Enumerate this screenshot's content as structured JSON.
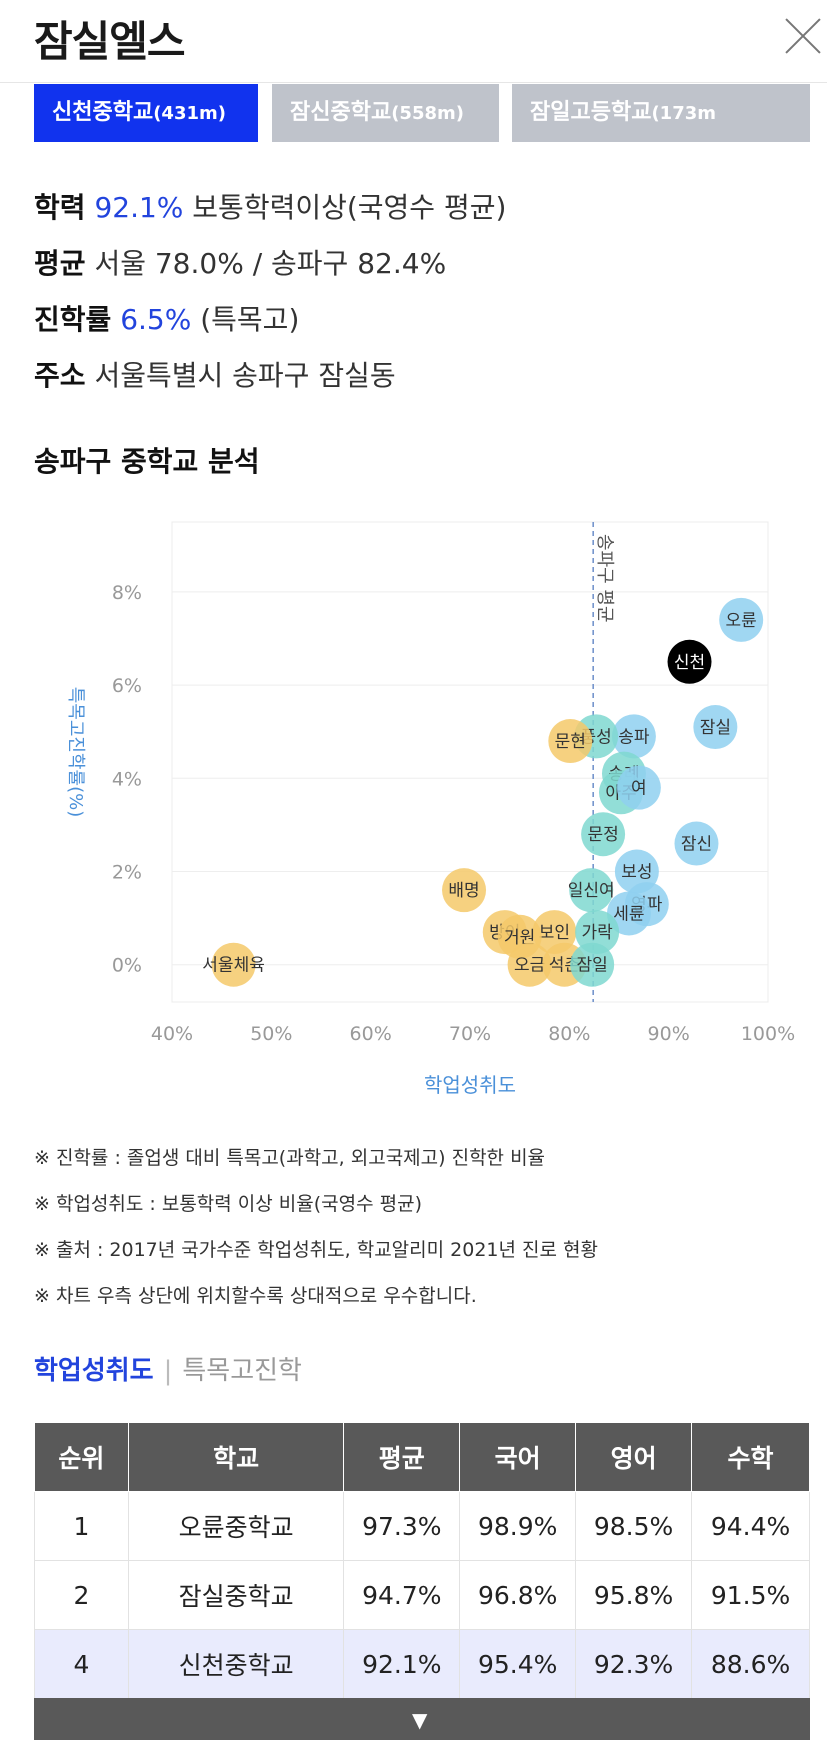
{
  "header": {
    "title": "잠실엘스"
  },
  "tabs": [
    {
      "label": "신천중학교",
      "distance": "(431m)",
      "active": true
    },
    {
      "label": "잠신중학교",
      "distance": "(558m)",
      "active": false
    },
    {
      "label": "잠일고등학교",
      "distance": "(173m",
      "active": false
    }
  ],
  "info": {
    "academic_label": "학력",
    "academic_value": "92.1%",
    "academic_desc": "보통학력이상(국영수 평균)",
    "avg_label": "평균",
    "avg_value": "서울 78.0% / 송파구 82.4%",
    "rate_label": "진학률",
    "rate_value": "6.5%",
    "rate_desc": "(특목고)",
    "addr_label": "주소",
    "addr_value": "서울특별시 송파구 잠실동"
  },
  "section_title": "송파구 중학교 분석",
  "chart_data": {
    "type": "scatter",
    "xlabel": "학업성취도",
    "ylabel": "특목고진학률(%)",
    "xlim": [
      40,
      100
    ],
    "ylim": [
      -0.8,
      9.5
    ],
    "xticks": [
      "40%",
      "50%",
      "60%",
      "70%",
      "80%",
      "90%",
      "100%"
    ],
    "xtick_values": [
      40,
      50,
      60,
      70,
      80,
      90,
      100
    ],
    "yticks": [
      "0%",
      "2%",
      "4%",
      "6%",
      "8%"
    ],
    "ytick_values": [
      0,
      2,
      4,
      6,
      8
    ],
    "reference_line": {
      "x": 82.4,
      "label": "송파구 평균"
    },
    "colors": {
      "above": "#8fd0f0",
      "mid": "#7fd8d0",
      "below": "#f5c96a",
      "selected": "#000000"
    },
    "points": [
      {
        "label": "오륜",
        "x": 97.3,
        "y": 7.4,
        "group": "above"
      },
      {
        "label": "신천",
        "x": 92.1,
        "y": 6.5,
        "group": "selected"
      },
      {
        "label": "잠실",
        "x": 94.7,
        "y": 5.1,
        "group": "above"
      },
      {
        "label": "송파",
        "x": 86.5,
        "y": 4.9,
        "group": "above"
      },
      {
        "label": "풍성",
        "x": 82.7,
        "y": 4.9,
        "group": "mid"
      },
      {
        "label": "문현",
        "x": 80.1,
        "y": 4.8,
        "group": "below"
      },
      {
        "label": "송례",
        "x": 85.5,
        "y": 4.1,
        "group": "mid"
      },
      {
        "label": "아주",
        "x": 85.2,
        "y": 3.7,
        "group": "mid"
      },
      {
        "label": "여",
        "x": 87.0,
        "y": 3.8,
        "group": "above"
      },
      {
        "label": "문정",
        "x": 83.4,
        "y": 2.8,
        "group": "mid"
      },
      {
        "label": "잠신",
        "x": 92.8,
        "y": 2.6,
        "group": "above"
      },
      {
        "label": "보성",
        "x": 86.8,
        "y": 2.0,
        "group": "above"
      },
      {
        "label": "배명",
        "x": 69.4,
        "y": 1.6,
        "group": "below"
      },
      {
        "label": "일신여",
        "x": 82.2,
        "y": 1.6,
        "group": "mid"
      },
      {
        "label": "영파",
        "x": 87.8,
        "y": 1.3,
        "group": "above"
      },
      {
        "label": "세륜",
        "x": 86.0,
        "y": 1.1,
        "group": "above"
      },
      {
        "label": "방이",
        "x": 73.5,
        "y": 0.7,
        "group": "below"
      },
      {
        "label": "보인",
        "x": 78.5,
        "y": 0.7,
        "group": "below"
      },
      {
        "label": "가락",
        "x": 82.8,
        "y": 0.7,
        "group": "mid"
      },
      {
        "label": "거원",
        "x": 75.0,
        "y": 0.6,
        "group": "below"
      },
      {
        "label": "오금",
        "x": 76.0,
        "y": 0.0,
        "group": "below"
      },
      {
        "label": "석촌",
        "x": 79.5,
        "y": 0.0,
        "group": "below"
      },
      {
        "label": "잠일",
        "x": 82.3,
        "y": 0.0,
        "group": "mid"
      },
      {
        "label": "서울체육",
        "x": 46.2,
        "y": 0.0,
        "group": "below"
      }
    ]
  },
  "notes": [
    "※ 진학률 : 졸업생 대비 특목고(과학고, 외고국제고) 진학한 비율",
    "※ 학업성취도 : 보통학력 이상 비율(국영수 평균)",
    "※ 출처 : 2017년 국가수준 학업성취도, 학교알리미 2021년 진로 현황",
    "※ 차트 우측 상단에 위치할수록 상대적으로 우수합니다."
  ],
  "subtabs": {
    "active": "학업성취도",
    "sep": "|",
    "other": "특목고진학"
  },
  "table": {
    "headers": [
      "순위",
      "학교",
      "평균",
      "국어",
      "영어",
      "수학"
    ],
    "rows": [
      {
        "rank": "1",
        "school": "오륜중학교",
        "avg": "97.3%",
        "kor": "98.9%",
        "eng": "98.5%",
        "math": "94.4%"
      },
      {
        "rank": "2",
        "school": "잠실중학교",
        "avg": "94.7%",
        "kor": "96.8%",
        "eng": "95.8%",
        "math": "91.5%"
      },
      {
        "rank": "4",
        "school": "신천중학교",
        "avg": "92.1%",
        "kor": "95.4%",
        "eng": "92.3%",
        "math": "88.6%"
      }
    ],
    "more_icon": "triangle-down-icon"
  }
}
